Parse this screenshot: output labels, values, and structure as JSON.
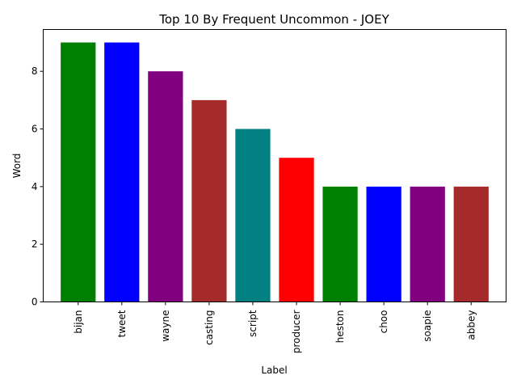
{
  "chart_data": {
    "type": "bar",
    "title": "Top 10 By Frequent Uncommon - JOEY",
    "xlabel": "Label",
    "ylabel": "Word",
    "categories": [
      "bijan",
      "tweet",
      "wayne",
      "casting",
      "script",
      "producer",
      "heston",
      "choo",
      "soapie",
      "abbey"
    ],
    "values": [
      9,
      9,
      8,
      7,
      6,
      5,
      4,
      4,
      4,
      4
    ],
    "colors": [
      "#008000",
      "#0000ff",
      "#800080",
      "#a52a2a",
      "#008080",
      "#ff0000",
      "#008000",
      "#0000ff",
      "#800080",
      "#a52a2a"
    ],
    "yticks": [
      "0",
      "2",
      "4",
      "6",
      "8"
    ],
    "ylim": [
      0,
      9.45
    ],
    "grid": false,
    "legend": "none"
  }
}
